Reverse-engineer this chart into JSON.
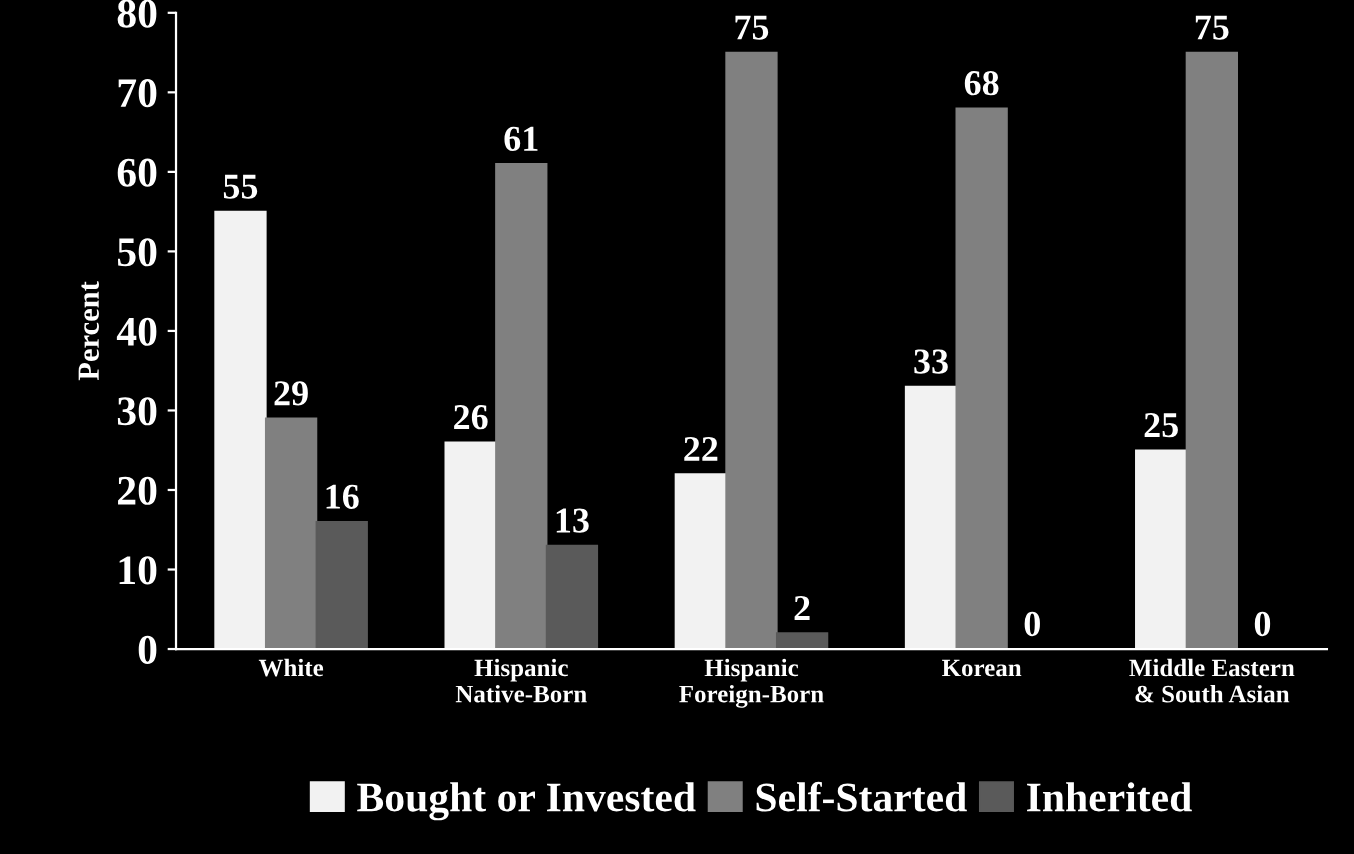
{
  "chart_data": {
    "type": "bar",
    "ylabel": "Percent",
    "categories": [
      "White",
      "Hispanic\nNative-Born",
      "Hispanic\nForeign-Born",
      "Korean",
      "Middle Eastern\n& South Asian"
    ],
    "series": [
      {
        "name": "Bought or Invested",
        "color": "#f2f2f2",
        "values": [
          55,
          26,
          22,
          33,
          25
        ]
      },
      {
        "name": "Self-Started",
        "color": "#808080",
        "values": [
          29,
          61,
          75,
          68,
          75
        ]
      },
      {
        "name": "Inherited",
        "color": "#5a5a5a",
        "values": [
          16,
          13,
          2,
          0,
          0
        ]
      }
    ],
    "ylim": [
      0,
      80
    ],
    "yticks": [
      0,
      10,
      20,
      30,
      40,
      50,
      60,
      70,
      80
    ],
    "data_labels": true,
    "legend": "bottom",
    "grid": false
  }
}
